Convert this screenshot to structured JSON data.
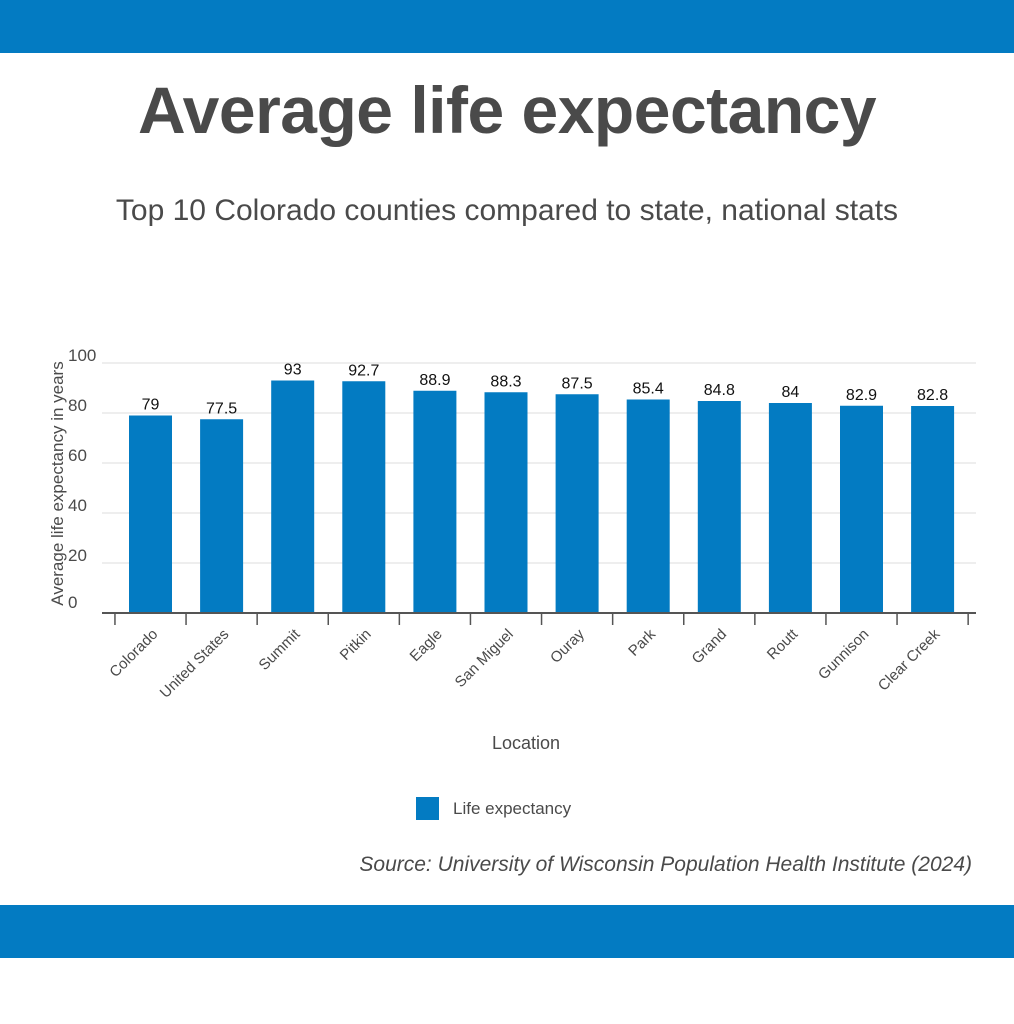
{
  "header": {
    "title": "Average life expectancy",
    "subtitle": "Top 10 Colorado counties compared to state, national stats"
  },
  "colors": {
    "brand": "#037bc2",
    "bar": "#037bc2",
    "text": "#4a4a4a",
    "gridline": "#dcdcdc",
    "axis": "#555555"
  },
  "chart_data": {
    "type": "bar",
    "title": "Average life expectancy",
    "subtitle": "Top 10 Colorado counties compared to state, national stats",
    "xlabel": "Location",
    "ylabel": "Average life expectancy in years",
    "ylim": [
      0,
      100
    ],
    "yticks": [
      0,
      20,
      40,
      60,
      80,
      100
    ],
    "grid": true,
    "legend_position": "bottom",
    "categories": [
      "Colorado",
      "United States",
      "Summit",
      "Pitkin",
      "Eagle",
      "San Miguel",
      "Ouray",
      "Park",
      "Grand",
      "Routt",
      "Gunnison",
      "Clear Creek"
    ],
    "series": [
      {
        "name": "Life expectancy",
        "values": [
          79,
          77.5,
          93,
          92.7,
          88.9,
          88.3,
          87.5,
          85.4,
          84.8,
          84,
          82.9,
          82.8
        ],
        "labels": [
          "79",
          "77.5",
          "93",
          "92.7",
          "88.9",
          "88.3",
          "87.5",
          "85.4",
          "84.8",
          "84",
          "82.9",
          "82.8"
        ]
      }
    ]
  },
  "legend": {
    "items": [
      {
        "label": "Life expectancy"
      }
    ]
  },
  "footer": {
    "source": "Source: University of Wisconsin Population Health Institute (2024)"
  }
}
